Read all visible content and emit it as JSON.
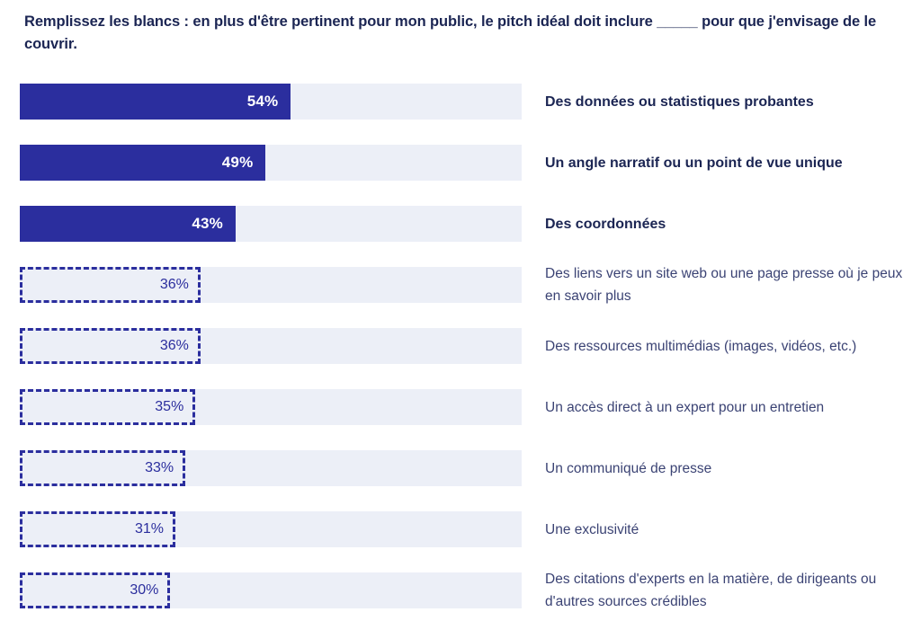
{
  "chart_data": {
    "type": "bar",
    "orientation": "horizontal",
    "title": "Remplissez les blancs : en plus d'être pertinent pour mon public, le pitch idéal doit inclure _____ pour que j'envisage de le couvrir.",
    "unit": "%",
    "xlim": [
      0,
      100
    ],
    "grid": false,
    "legend": "none",
    "categories": [
      "Des données ou statistiques probantes",
      "Un angle narratif ou un point de vue unique",
      "Des coordonnées",
      "Des liens vers un site web ou une page presse où je peux en savoir plus",
      "Des ressources multimédias (images, vidéos, etc.)",
      "Un accès direct à un expert pour un entretien",
      "Un communiqué de presse",
      "Une exclusivité",
      "Des citations d'experts en la matière, de dirigeants ou d'autres sources crédibles"
    ],
    "values": [
      54,
      49,
      43,
      36,
      36,
      35,
      33,
      31,
      30
    ],
    "value_labels": [
      "54%",
      "49%",
      "43%",
      "36%",
      "36%",
      "35%",
      "33%",
      "31%",
      "30%"
    ],
    "bar_styles": [
      "solid",
      "solid",
      "solid",
      "dashed",
      "dashed",
      "dashed",
      "dashed",
      "dashed",
      "dashed"
    ],
    "emphasized_categories": [
      true,
      true,
      true,
      false,
      false,
      false,
      false,
      false,
      false
    ]
  },
  "colors": {
    "bar_fill": "#2B2E9E",
    "bar_track": "#ECEFF7",
    "title_text": "#1B2553",
    "category_bold_text": "#1B2553",
    "category_text": "#3B4374",
    "value_on_solid": "#FFFFFF",
    "value_on_dashed": "#2B2E9E"
  }
}
